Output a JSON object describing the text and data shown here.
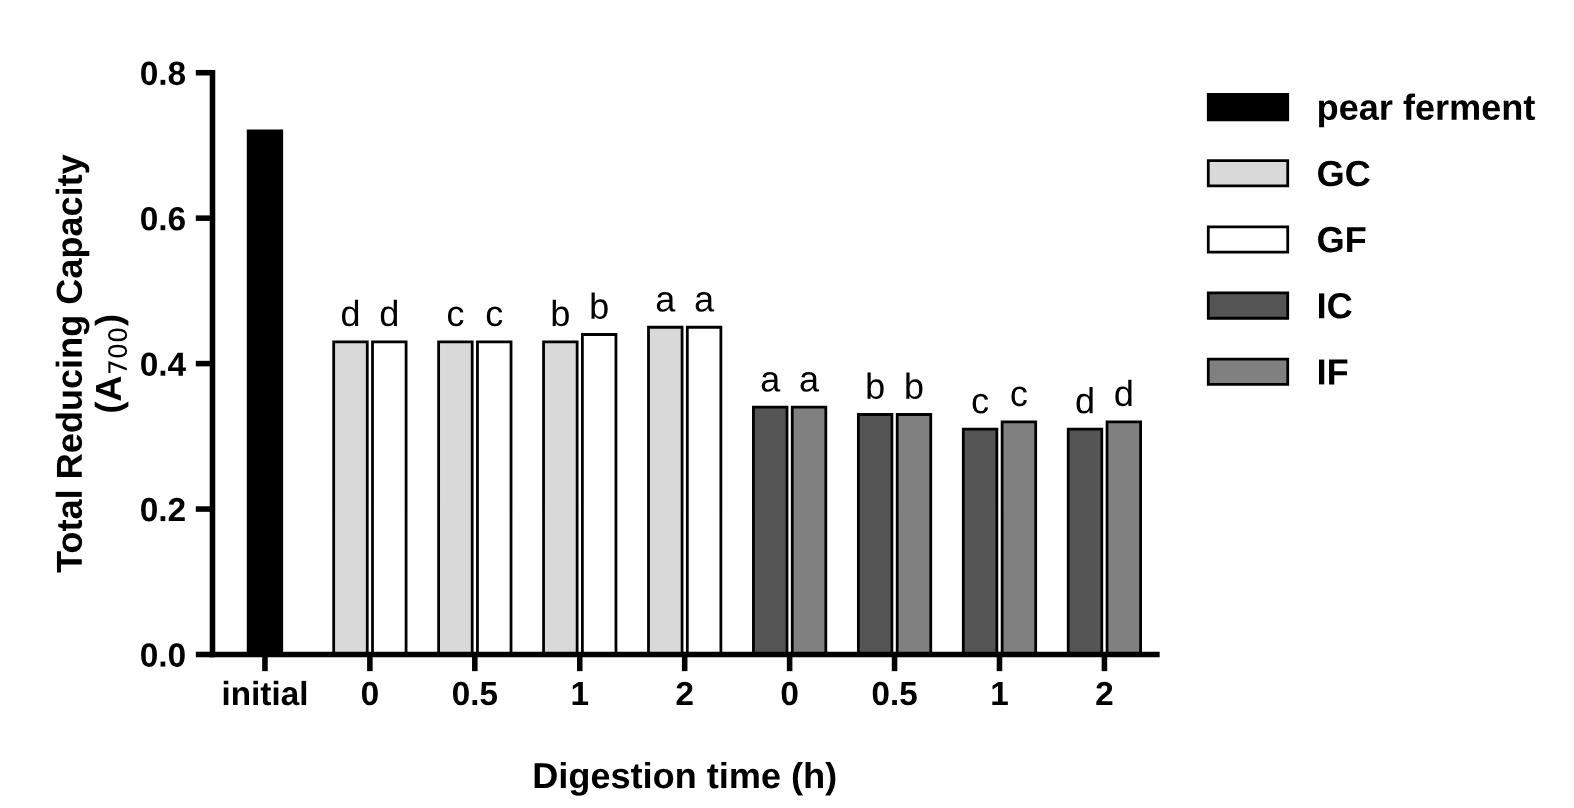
{
  "chart_data": {
    "type": "bar",
    "xlabel": "Digestion time (h)",
    "ylabel": "Total Reducing Capacity\n(A$_{700}$)",
    "categories": [
      "initial",
      "0",
      "0.5",
      "1",
      "2",
      "0",
      "0.5",
      "1",
      "2"
    ],
    "ylim": [
      0,
      0.8
    ],
    "yticks": [
      "0.0",
      0.2,
      0.4,
      0.6,
      0.8
    ],
    "legend": "right",
    "grid": false,
    "series": [
      {
        "name": "pear ferment",
        "color": "#000000",
        "values": [
          0.72,
          null,
          null,
          null,
          null,
          null,
          null,
          null,
          null
        ]
      },
      {
        "name": "GC",
        "color": "#d9d9d9",
        "values": [
          null,
          0.43,
          0.43,
          0.43,
          0.45,
          null,
          null,
          null,
          null
        ],
        "value_labels": [
          null,
          "d",
          "c",
          "b",
          "a",
          null,
          null,
          null,
          null
        ]
      },
      {
        "name": "GF",
        "color": "#ffffff",
        "values": [
          null,
          0.43,
          0.43,
          0.44,
          0.45,
          null,
          null,
          null,
          null
        ],
        "value_labels": [
          null,
          "d",
          "c",
          "b",
          "a",
          null,
          null,
          null,
          null
        ]
      },
      {
        "name": "IC",
        "color": "#555555",
        "values": [
          null,
          null,
          null,
          null,
          null,
          0.34,
          0.33,
          0.31,
          0.31
        ],
        "value_labels": [
          null,
          null,
          null,
          null,
          null,
          "a",
          "b",
          "c",
          "d"
        ]
      },
      {
        "name": "IF",
        "color": "#808080",
        "values": [
          null,
          null,
          null,
          null,
          null,
          0.34,
          0.33,
          0.32,
          0.32
        ],
        "value_labels": [
          null,
          null,
          null,
          null,
          null,
          "a",
          "b",
          "c",
          "d"
        ]
      }
    ]
  }
}
